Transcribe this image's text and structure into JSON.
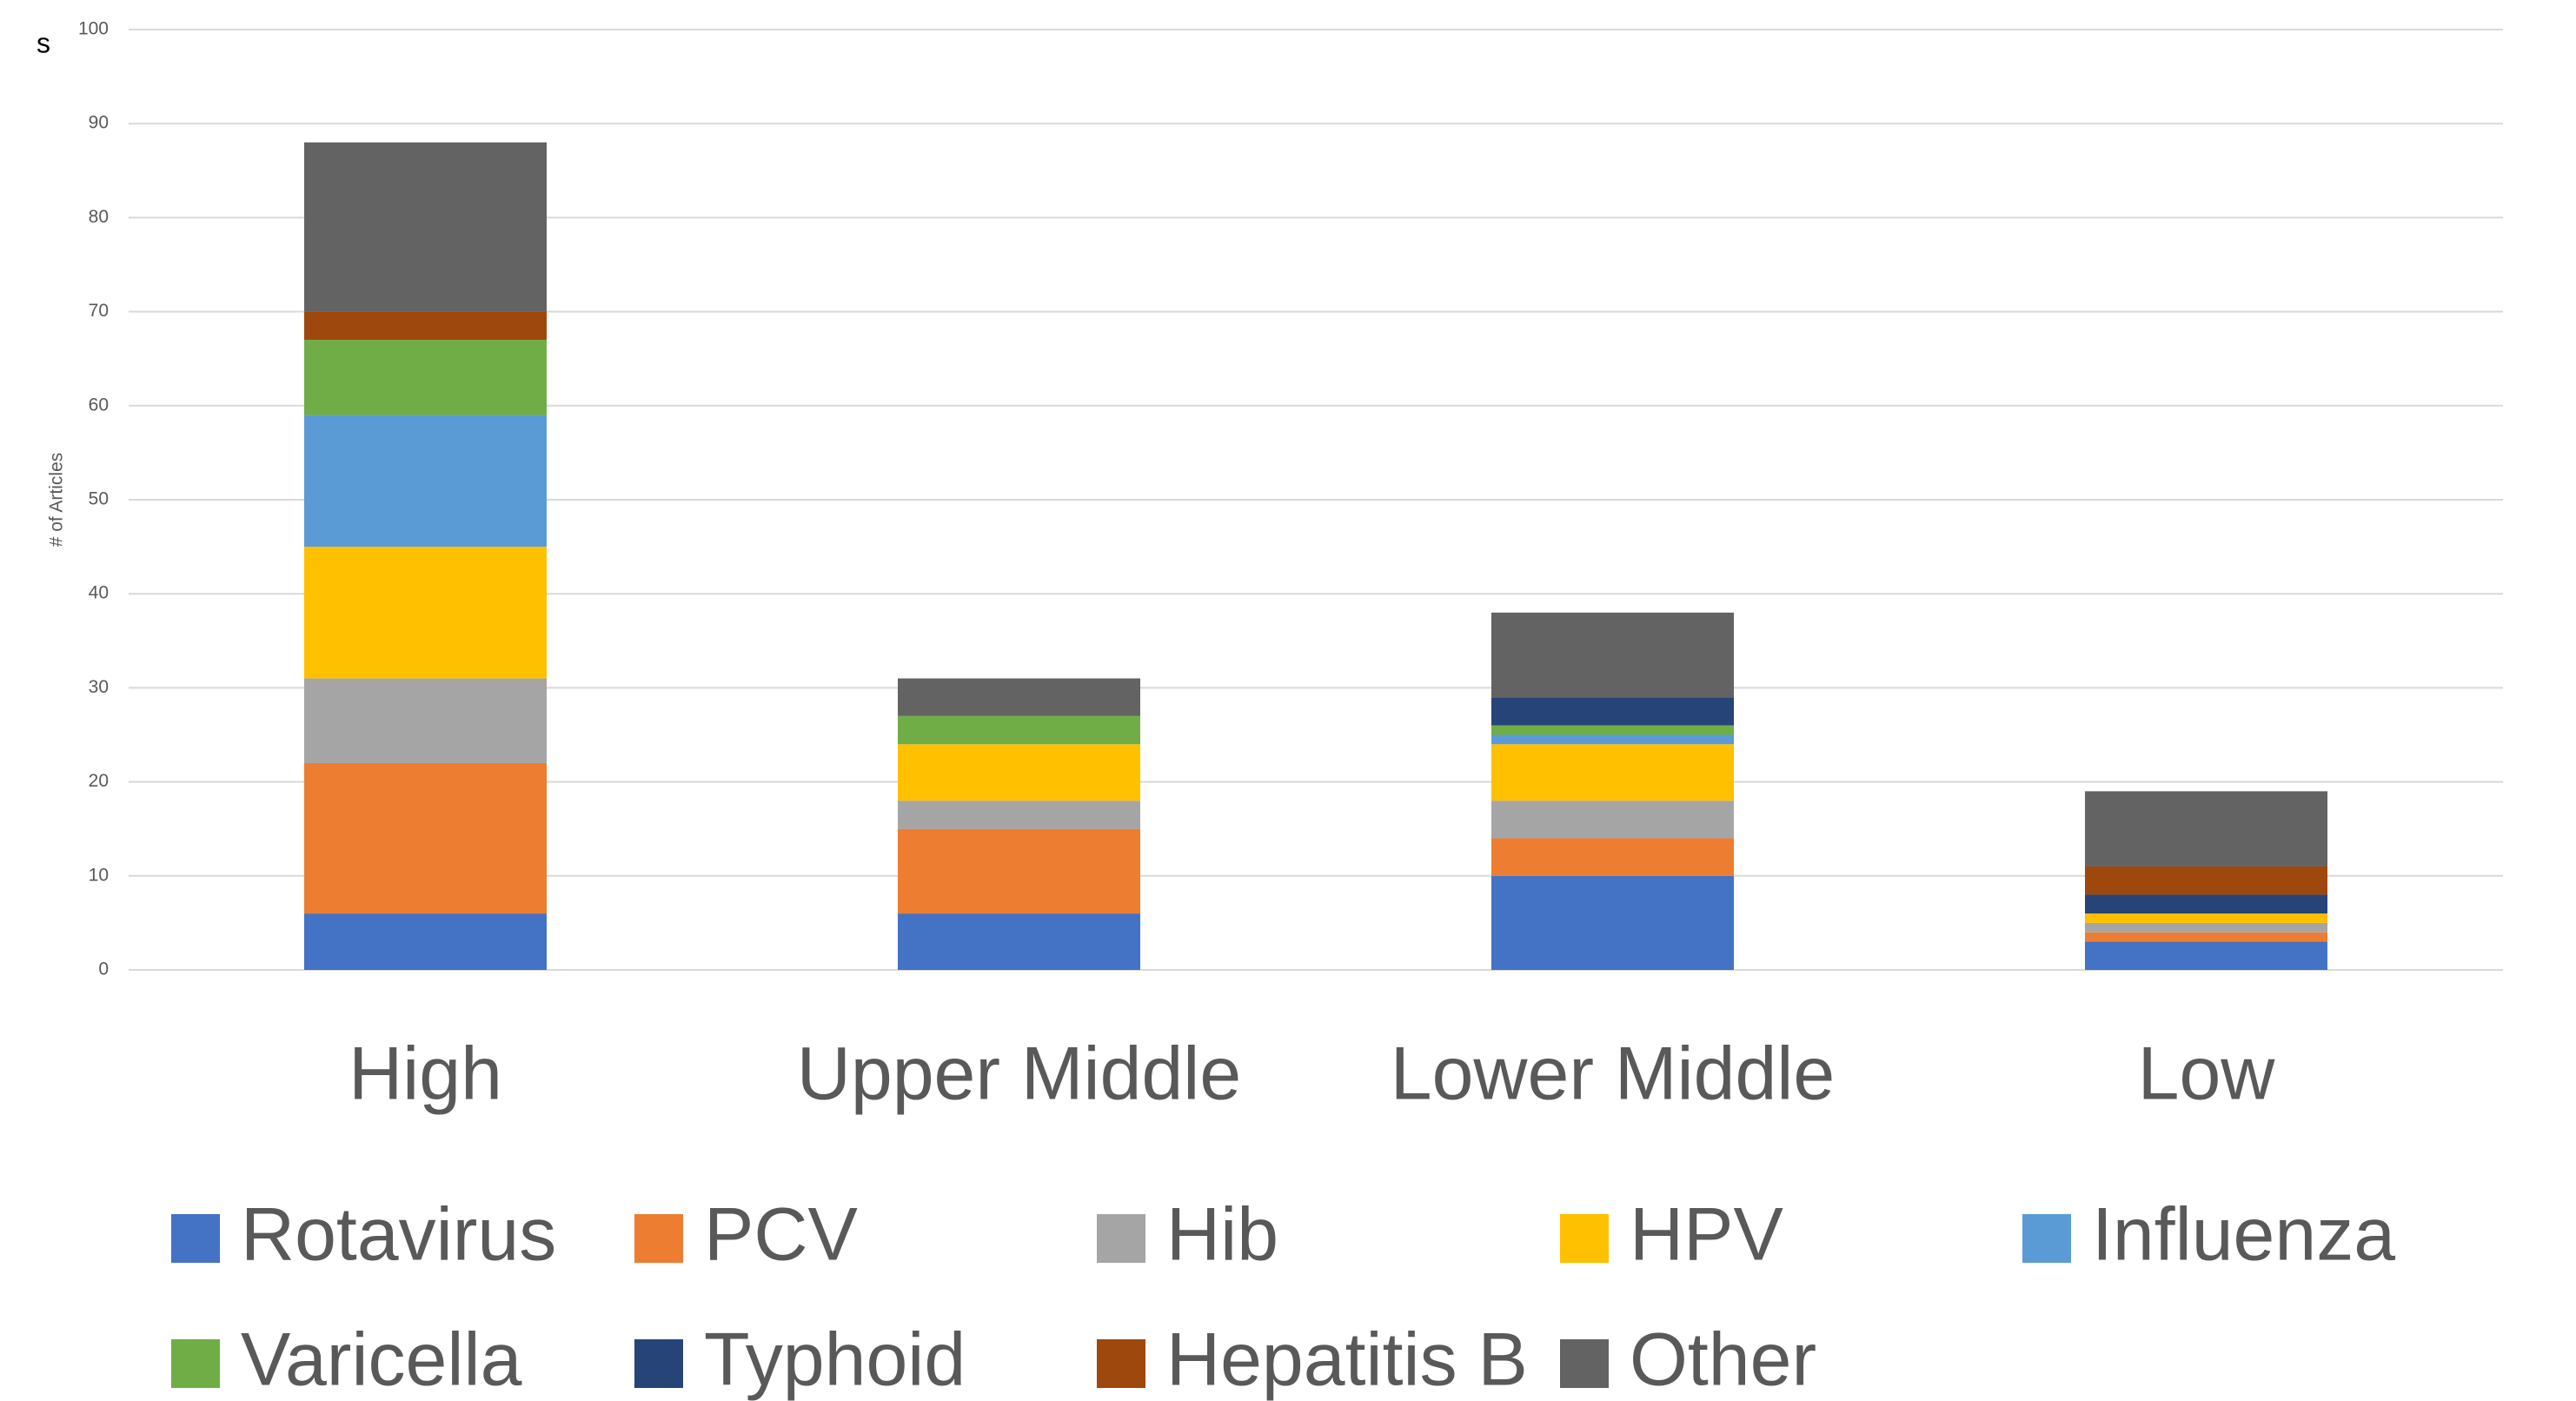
{
  "chart_data": {
    "type": "bar",
    "stacked": true,
    "annotation": "s",
    "y_label": "# of Articles",
    "categories": [
      "High",
      "Upper Middle",
      "Lower Middle",
      "Low"
    ],
    "series": [
      {
        "name": "Rotavirus",
        "color": "#4472c4",
        "values": [
          6,
          6,
          10,
          3
        ]
      },
      {
        "name": "PCV",
        "color": "#ed7d31",
        "values": [
          16,
          9,
          4,
          1
        ]
      },
      {
        "name": "Hib",
        "color": "#a5a5a5",
        "values": [
          9,
          3,
          4,
          1
        ]
      },
      {
        "name": "HPV",
        "color": "#ffc000",
        "values": [
          14,
          6,
          6,
          1
        ]
      },
      {
        "name": "Influenza",
        "color": "#5b9bd5",
        "values": [
          14,
          0,
          1,
          0
        ]
      },
      {
        "name": "Varicella",
        "color": "#70ad47",
        "values": [
          8,
          3,
          1,
          0
        ]
      },
      {
        "name": "Typhoid",
        "color": "#264478",
        "values": [
          0,
          0,
          3,
          2
        ]
      },
      {
        "name": "Hepatitis B",
        "color": "#9e480e",
        "values": [
          3,
          0,
          0,
          3
        ]
      },
      {
        "name": "Other",
        "color": "#636363",
        "values": [
          18,
          4,
          9,
          8
        ]
      }
    ],
    "ylim": [
      0,
      100
    ],
    "yticks": [
      0,
      10,
      20,
      30,
      40,
      50,
      60,
      70,
      80,
      90,
      100
    ],
    "grid": true,
    "legend": "bottom"
  }
}
